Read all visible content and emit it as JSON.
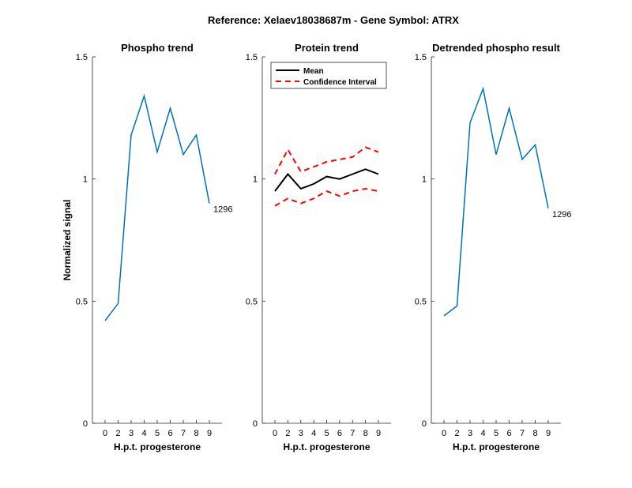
{
  "figure": {
    "suptitle": "Reference:  Xelaev18038687m - Gene Symbol:  ATRX"
  },
  "chart_data": [
    {
      "type": "line",
      "title": "Phospho trend",
      "xlabel": "H.p.t. progesterone",
      "ylabel": "Normalized signal",
      "categories": [
        "0",
        "2",
        "3",
        "4",
        "5",
        "6",
        "7",
        "8",
        "9"
      ],
      "ylim": [
        0,
        1.5
      ],
      "yticks": [
        "0",
        "0.5",
        "1",
        "1.5"
      ],
      "series": [
        {
          "name": "",
          "color": "#0072BD",
          "dash": "",
          "values": [
            0.42,
            0.49,
            1.18,
            1.34,
            1.11,
            1.29,
            1.1,
            1.18,
            0.9
          ]
        }
      ],
      "annotations": [
        {
          "text": "1296",
          "series": 0,
          "index": 8
        }
      ]
    },
    {
      "type": "line",
      "title": "Protein trend",
      "xlabel": "H.p.t. progesterone",
      "ylabel": "",
      "categories": [
        "0",
        "2",
        "3",
        "4",
        "5",
        "6",
        "7",
        "8",
        "9"
      ],
      "ylim": [
        0,
        1.5
      ],
      "yticks": [
        "0",
        "0.5",
        "1",
        "1.5"
      ],
      "legend": {
        "position": "top-left",
        "entries": [
          "Mean",
          "Confidence Interval"
        ]
      },
      "series": [
        {
          "name": "Mean",
          "color": "#000000",
          "dash": "",
          "values": [
            0.95,
            1.02,
            0.96,
            0.98,
            1.01,
            1.0,
            1.02,
            1.04,
            1.02
          ]
        },
        {
          "name": "Confidence Interval",
          "color": "#FF0000",
          "dash": "7,5",
          "values": [
            1.02,
            1.12,
            1.03,
            1.05,
            1.07,
            1.08,
            1.09,
            1.13,
            1.11
          ]
        },
        {
          "name": "",
          "color": "#FF0000",
          "dash": "7,5",
          "values": [
            0.89,
            0.92,
            0.9,
            0.92,
            0.95,
            0.93,
            0.95,
            0.96,
            0.95
          ]
        }
      ],
      "annotations": []
    },
    {
      "type": "line",
      "title": "Detrended phospho result",
      "xlabel": "H.p.t. progesterone",
      "ylabel": "",
      "categories": [
        "0",
        "2",
        "3",
        "4",
        "5",
        "6",
        "7",
        "8",
        "9"
      ],
      "ylim": [
        0,
        1.5
      ],
      "yticks": [
        "0",
        "0.5",
        "1",
        "1.5"
      ],
      "series": [
        {
          "name": "",
          "color": "#0072BD",
          "dash": "",
          "values": [
            0.44,
            0.48,
            1.23,
            1.37,
            1.1,
            1.29,
            1.08,
            1.14,
            0.88
          ]
        }
      ],
      "annotations": [
        {
          "text": "1296",
          "series": 0,
          "index": 8
        }
      ]
    }
  ]
}
